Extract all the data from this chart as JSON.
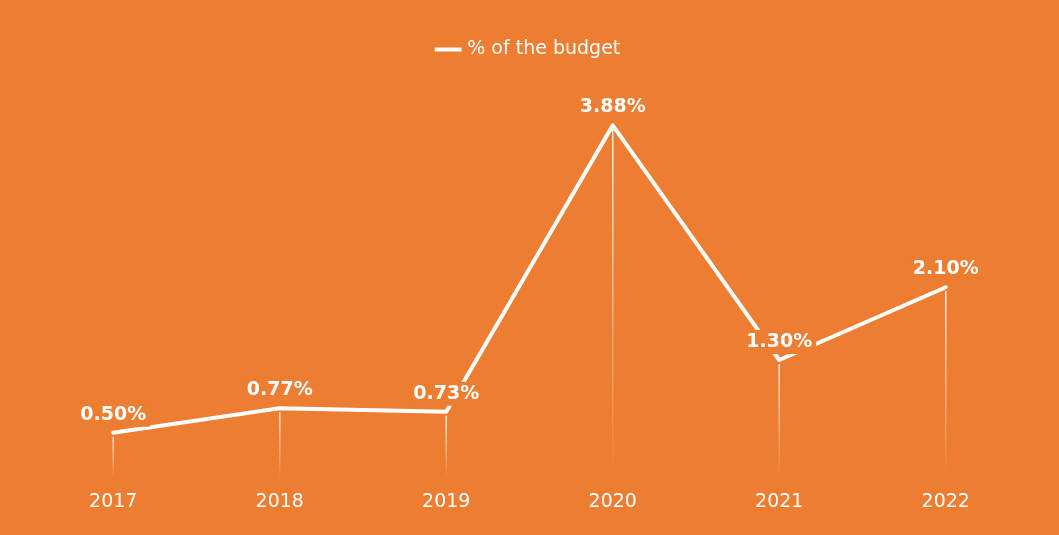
{
  "chart_data": {
    "type": "line",
    "categories": [
      "2017",
      "2018",
      "2019",
      "2020",
      "2021",
      "2022"
    ],
    "series": [
      {
        "name": "% of the budget",
        "color": "#ffffff",
        "values": [
          0.5,
          0.77,
          0.73,
          3.88,
          1.3,
          2.1
        ],
        "value_labels": [
          "0.50%",
          "0.77%",
          "0.73%",
          "3.88%",
          "1.30%",
          "2.10%"
        ]
      }
    ],
    "tick_labels": "x",
    "legend": "top",
    "grid": "x",
    "line_style": "solid"
  }
}
